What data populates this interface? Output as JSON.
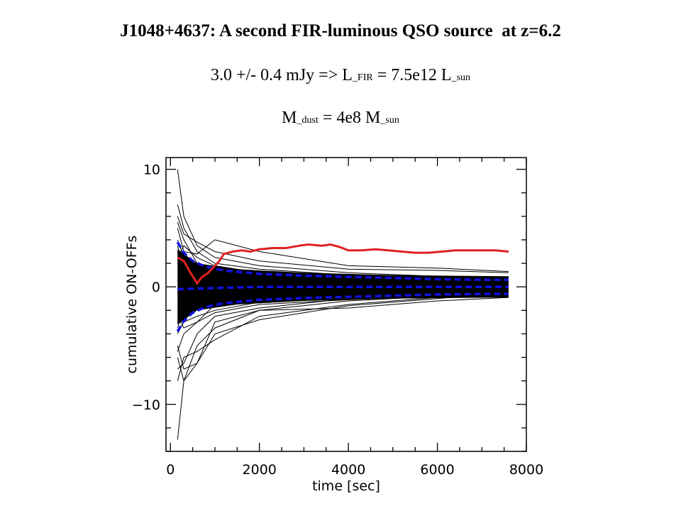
{
  "header": {
    "title": "J1048+4637: A second FIR-luminous QSO source  at z=6.2",
    "line2": {
      "prefix": "3.0 +/- 0.4 mJy => L",
      "sub1": "_FIR",
      "middle": " = 7.5e12 L",
      "sub2": "_sun"
    },
    "line3": {
      "prefix": "M",
      "sub1": "_dust",
      "middle": " = 4e8 M",
      "sub2": "_sun"
    }
  },
  "chart_data": {
    "type": "line",
    "xlabel": "time [sec]",
    "ylabel": "cumulative ON-OFFs",
    "xlim": [
      -100,
      8000
    ],
    "ylim": [
      -14,
      11
    ],
    "xticks": [
      0,
      2000,
      4000,
      6000,
      8000
    ],
    "yticks": [
      -10,
      0,
      10
    ],
    "grid": false,
    "colors": {
      "source": "#e02020",
      "envelope": "#1010e0",
      "offs": "#000000"
    },
    "series": [
      {
        "role": "source",
        "x": [
          160,
          300,
          450,
          600,
          700,
          850,
          1000,
          1100,
          1200,
          1400,
          1600,
          1800,
          2000,
          2300,
          2600,
          2900,
          3100,
          3400,
          3600,
          3800,
          4000,
          4300,
          4600,
          4900,
          5200,
          5500,
          5800,
          6100,
          6400,
          6700,
          7000,
          7300,
          7600
        ],
        "values": [
          2.5,
          2.2,
          1.2,
          0.3,
          0.8,
          1.2,
          1.8,
          2.2,
          2.8,
          3.0,
          3.1,
          3.0,
          3.2,
          3.3,
          3.3,
          3.5,
          3.6,
          3.5,
          3.6,
          3.4,
          3.1,
          3.1,
          3.2,
          3.1,
          3.0,
          2.9,
          2.9,
          3.0,
          3.1,
          3.1,
          3.1,
          3.1,
          3.0
        ]
      },
      {
        "role": "envelope",
        "x": [
          160,
          300,
          500,
          800,
          1200,
          2000,
          3000,
          4000,
          5000,
          6000,
          7000,
          7600
        ],
        "values": [
          3.8,
          2.9,
          2.2,
          1.7,
          1.4,
          1.1,
          0.95,
          0.85,
          0.75,
          0.65,
          0.6,
          0.6
        ]
      },
      {
        "role": "envelope",
        "x": [
          160,
          300,
          500,
          800,
          1200,
          2000,
          3000,
          4000,
          5000,
          6000,
          7000,
          7600
        ],
        "values": [
          -3.8,
          -2.9,
          -2.2,
          -1.7,
          -1.4,
          -1.1,
          -0.95,
          -0.85,
          -0.75,
          -0.65,
          -0.6,
          -0.6
        ]
      },
      {
        "role": "envelope",
        "x": [
          160,
          1000,
          2000,
          4000,
          6000,
          7600
        ],
        "values": [
          -0.2,
          -0.1,
          0.0,
          0.0,
          0.0,
          0.0
        ]
      },
      {
        "role": "off",
        "x": [
          160,
          300,
          600,
          1000,
          2000,
          4000,
          6000,
          7600
        ],
        "values": [
          10.0,
          6.0,
          3.5,
          2.5,
          1.8,
          1.2,
          0.9,
          0.8
        ]
      },
      {
        "role": "off",
        "x": [
          160,
          300,
          600,
          1000,
          2000,
          4000,
          6000,
          7600
        ],
        "values": [
          -13.0,
          -8.0,
          -5.0,
          -3.5,
          -2.0,
          -1.2,
          -0.8,
          -0.6
        ]
      },
      {
        "role": "off",
        "x": [
          160,
          300,
          600,
          1000,
          2000,
          4000,
          6000,
          7600
        ],
        "values": [
          6.0,
          4.5,
          3.8,
          3.0,
          2.2,
          1.5,
          1.4,
          1.2
        ]
      },
      {
        "role": "off",
        "x": [
          160,
          300,
          600,
          1000,
          2000,
          4000,
          6000,
          7600
        ],
        "values": [
          -8.0,
          -6.0,
          -5.5,
          -4.5,
          -2.5,
          -1.5,
          -0.9,
          -0.7
        ]
      },
      {
        "role": "off",
        "x": [
          160,
          300,
          600,
          1000,
          2000,
          4000,
          6000,
          7600
        ],
        "values": [
          5.0,
          3.0,
          2.8,
          4.0,
          3.0,
          1.8,
          1.6,
          1.3
        ]
      },
      {
        "role": "off",
        "x": [
          160,
          300,
          600,
          1000,
          2000,
          4000,
          6000,
          7600
        ],
        "values": [
          -5.0,
          -7.0,
          -6.5,
          -4.0,
          -2.8,
          -1.6,
          -1.0,
          -0.5
        ]
      },
      {
        "role": "off",
        "x": [
          160,
          300,
          600,
          1000,
          2000,
          4000,
          6000,
          7600
        ],
        "values": [
          4.0,
          2.5,
          1.5,
          1.2,
          1.0,
          0.8,
          0.7,
          0.6
        ]
      },
      {
        "role": "off",
        "x": [
          160,
          300,
          600,
          1000,
          2000,
          4000,
          6000,
          7600
        ],
        "values": [
          -4.0,
          -3.0,
          -2.5,
          -2.0,
          -1.3,
          -0.9,
          -0.7,
          -0.5
        ]
      },
      {
        "role": "off",
        "x": [
          160,
          300,
          600,
          1000,
          2000,
          4000,
          6000,
          7600
        ],
        "values": [
          3.0,
          2.0,
          1.8,
          1.5,
          0.8,
          0.5,
          0.4,
          0.4
        ]
      },
      {
        "role": "off",
        "x": [
          160,
          300,
          600,
          1000,
          2000,
          4000,
          6000,
          7600
        ],
        "values": [
          -3.0,
          -2.2,
          -1.5,
          -1.2,
          -0.8,
          -0.5,
          -0.4,
          -0.3
        ]
      },
      {
        "role": "off",
        "x": [
          160,
          300,
          600,
          1000,
          2000,
          4000,
          6000,
          7600
        ],
        "values": [
          2.0,
          1.0,
          0.5,
          0.8,
          0.5,
          0.3,
          0.2,
          0.2
        ]
      },
      {
        "role": "off",
        "x": [
          160,
          300,
          600,
          1000,
          2000,
          4000,
          6000,
          7600
        ],
        "values": [
          -2.0,
          -1.0,
          -0.8,
          -0.6,
          -0.4,
          -0.3,
          -0.2,
          -0.2
        ]
      },
      {
        "role": "off",
        "x": [
          160,
          300,
          600,
          1000,
          2000,
          4000,
          6000,
          7600
        ],
        "values": [
          1.0,
          0.5,
          0.2,
          0.1,
          0.0,
          0.1,
          0.0,
          0.0
        ]
      },
      {
        "role": "off",
        "x": [
          160,
          300,
          600,
          1000,
          2000,
          4000,
          6000,
          7600
        ],
        "values": [
          -1.0,
          -0.5,
          -0.3,
          -0.2,
          -0.1,
          0.0,
          0.0,
          0.0
        ]
      },
      {
        "role": "off",
        "x": [
          160,
          300,
          600,
          1000,
          2000,
          4000,
          6000,
          7600
        ],
        "values": [
          7.0,
          5.0,
          3.0,
          2.0,
          1.5,
          1.0,
          0.6,
          0.5
        ]
      },
      {
        "role": "off",
        "x": [
          160,
          300,
          600,
          1000,
          2000,
          4000,
          6000,
          7600
        ],
        "values": [
          -7.0,
          -6.5,
          -4.0,
          -2.5,
          -1.8,
          -1.0,
          -0.6,
          -0.4
        ]
      },
      {
        "role": "off",
        "x": [
          160,
          300,
          600,
          1000,
          2000,
          4000,
          6000,
          7600
        ],
        "values": [
          -6.0,
          -8.0,
          -6.5,
          -3.0,
          -2.0,
          -1.8,
          -1.2,
          -0.9
        ]
      },
      {
        "role": "off",
        "x": [
          160,
          300,
          600,
          1000,
          2000,
          4000,
          6000,
          7600
        ],
        "values": [
          5.5,
          4.0,
          2.0,
          1.0,
          0.9,
          0.6,
          0.4,
          0.3
        ]
      },
      {
        "role": "off",
        "x": [
          160,
          300,
          600,
          1000,
          2000,
          4000,
          6000,
          7600
        ],
        "values": [
          -5.5,
          -4.0,
          -3.0,
          -1.5,
          -0.9,
          -0.6,
          -0.4,
          -0.3
        ]
      },
      {
        "role": "off",
        "x": [
          160,
          300,
          600,
          1000,
          2000,
          4000,
          6000,
          7600
        ],
        "values": [
          3.5,
          1.5,
          0.8,
          0.6,
          0.4,
          0.2,
          0.1,
          0.1
        ]
      },
      {
        "role": "off",
        "x": [
          160,
          300,
          600,
          1000,
          2000,
          4000,
          6000,
          7600
        ],
        "values": [
          -3.5,
          -1.8,
          -1.0,
          -0.7,
          -0.4,
          -0.2,
          -0.1,
          -0.1
        ]
      },
      {
        "role": "off",
        "x": [
          160,
          300,
          600,
          1000,
          2000,
          4000,
          6000,
          7600
        ],
        "values": [
          2.5,
          3.5,
          2.5,
          1.8,
          1.2,
          0.9,
          0.7,
          0.5
        ]
      },
      {
        "role": "off",
        "x": [
          160,
          300,
          600,
          1000,
          2000,
          4000,
          6000,
          7600
        ],
        "values": [
          -2.5,
          -3.5,
          -3.0,
          -2.2,
          -1.5,
          -1.1,
          -0.8,
          -0.6
        ]
      },
      {
        "role": "off",
        "x": [
          160,
          300,
          600,
          1000,
          2000,
          4000,
          6000,
          7600
        ],
        "values": [
          0.5,
          1.5,
          1.0,
          0.5,
          0.3,
          0.2,
          0.1,
          0.1
        ]
      },
      {
        "role": "off",
        "x": [
          160,
          300,
          600,
          1000,
          2000,
          4000,
          6000,
          7600
        ],
        "values": [
          -0.5,
          -1.5,
          -1.2,
          -0.8,
          -0.5,
          -0.3,
          -0.2,
          -0.1
        ]
      }
    ]
  }
}
